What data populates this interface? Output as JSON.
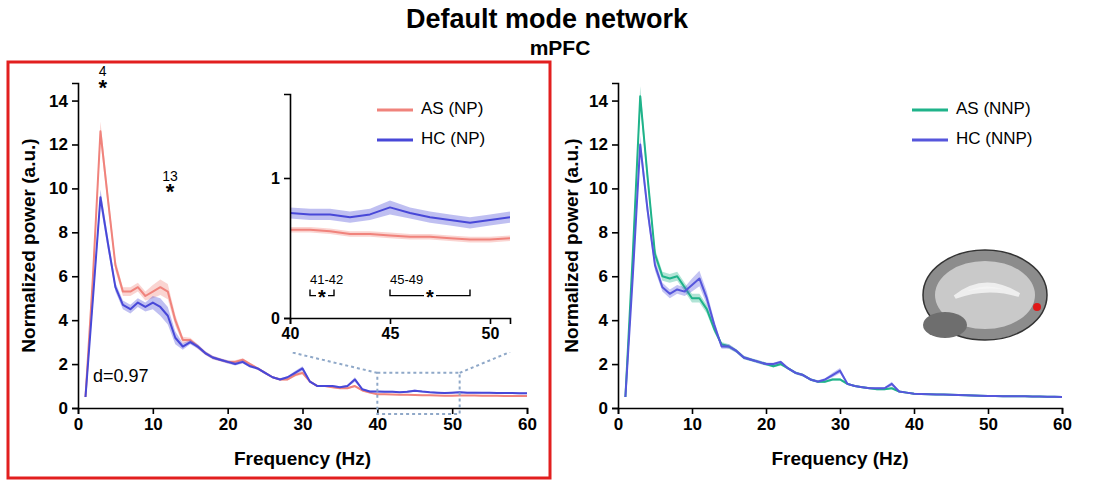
{
  "chart_data": [
    {
      "type": "line",
      "title": "Default mode network",
      "subtitle": "mPFC",
      "x_label": "Frequency (Hz)",
      "y_label": "Normalized power (a.u.)",
      "x": [
        1,
        2,
        3,
        4,
        5,
        6,
        7,
        8,
        9,
        10,
        11,
        12,
        13,
        14,
        15,
        16,
        17,
        18,
        19,
        20,
        21,
        22,
        23,
        24,
        25,
        26,
        27,
        28,
        29,
        30,
        31,
        32,
        33,
        34,
        35,
        36,
        37,
        38,
        39,
        40,
        41,
        42,
        43,
        44,
        45,
        46,
        47,
        48,
        49,
        50,
        51,
        52,
        53,
        54,
        55,
        56,
        57,
        58,
        59,
        60
      ],
      "series": [
        {
          "name": "AS (NP)",
          "color": "#f0837c",
          "values": [
            0.5,
            6,
            12.6,
            9.5,
            6.5,
            5.3,
            5.3,
            5.5,
            5.1,
            5.3,
            5.5,
            5.3,
            4.0,
            3.1,
            3.1,
            2.8,
            2.5,
            2.3,
            2.2,
            2.1,
            2.1,
            2.2,
            2.0,
            1.8,
            1.6,
            1.4,
            1.3,
            1.3,
            1.5,
            1.6,
            1.2,
            1.0,
            1.0,
            0.95,
            0.9,
            0.9,
            1.0,
            0.8,
            0.7,
            0.63,
            0.63,
            0.62,
            0.6,
            0.6,
            0.59,
            0.58,
            0.58,
            0.57,
            0.56,
            0.56,
            0.57,
            0.57,
            0.57,
            0.56,
            0.56,
            0.56,
            0.55,
            0.55,
            0.55,
            0.55
          ],
          "error": [
            0.05,
            0.4,
            0.45,
            0.35,
            0.25,
            0.2,
            0.2,
            0.2,
            0.2,
            0.3,
            0.35,
            0.35,
            0.25,
            0.15,
            0.1,
            0.1,
            0.08,
            0.08,
            0.07,
            0.07,
            0.07,
            0.07,
            0.06,
            0.06,
            0.06,
            0.05,
            0.05,
            0.05,
            0.06,
            0.08,
            0.05,
            0.04,
            0.04,
            0.04,
            0.04,
            0.04,
            0.05,
            0.03,
            0.03,
            0.02,
            0.02,
            0.02,
            0.02,
            0.02,
            0.02,
            0.02,
            0.02,
            0.02,
            0.02,
            0.02,
            0.02,
            0.02,
            0.02,
            0.02,
            0.02,
            0.02,
            0.02,
            0.02,
            0.02,
            0.02
          ]
        },
        {
          "name": "HC (NP)",
          "color": "#4848d8",
          "values": [
            0.5,
            5,
            9.6,
            7.5,
            5.5,
            4.7,
            4.5,
            4.8,
            4.6,
            4.8,
            4.6,
            4.2,
            3.2,
            2.8,
            3.0,
            2.8,
            2.5,
            2.3,
            2.2,
            2.1,
            2.0,
            2.1,
            1.9,
            1.8,
            1.6,
            1.4,
            1.3,
            1.4,
            1.6,
            1.8,
            1.2,
            1.0,
            1.0,
            1.0,
            0.95,
            1.0,
            1.3,
            0.85,
            0.75,
            0.75,
            0.74,
            0.74,
            0.72,
            0.74,
            0.79,
            0.75,
            0.72,
            0.7,
            0.68,
            0.7,
            0.72,
            0.7,
            0.7,
            0.69,
            0.69,
            0.68,
            0.68,
            0.68,
            0.67,
            0.67
          ],
          "error": [
            0.05,
            0.3,
            0.35,
            0.3,
            0.2,
            0.2,
            0.2,
            0.2,
            0.2,
            0.3,
            0.4,
            0.4,
            0.3,
            0.15,
            0.1,
            0.1,
            0.08,
            0.08,
            0.07,
            0.07,
            0.07,
            0.07,
            0.06,
            0.06,
            0.06,
            0.05,
            0.05,
            0.05,
            0.08,
            0.1,
            0.05,
            0.04,
            0.04,
            0.04,
            0.04,
            0.05,
            0.1,
            0.04,
            0.04,
            0.04,
            0.04,
            0.04,
            0.04,
            0.04,
            0.05,
            0.04,
            0.04,
            0.04,
            0.04,
            0.04,
            0.04,
            0.04,
            0.04,
            0.04,
            0.04,
            0.04,
            0.04,
            0.04,
            0.04,
            0.04
          ]
        }
      ],
      "xlim": [
        0,
        60
      ],
      "ylim": [
        0,
        14.8
      ],
      "xticks": [
        0,
        10,
        20,
        30,
        40,
        50,
        60
      ],
      "yticks": [
        0,
        2,
        4,
        6,
        8,
        10,
        12,
        14
      ],
      "legend": "top-right",
      "annotations": [
        {
          "text": "4",
          "x": 3.3,
          "y": 15.3
        },
        {
          "text": "*",
          "x": 3.3,
          "y": 14.5
        },
        {
          "text": "13",
          "x": 12.3,
          "y": 10.5
        },
        {
          "text": "*",
          "x": 12.3,
          "y": 9.8
        },
        {
          "text": "d=0.97",
          "x": 2,
          "y": 1.4
        }
      ]
    },
    {
      "type": "line",
      "x": [
        40,
        41,
        42,
        43,
        44,
        45,
        46,
        47,
        48,
        49,
        50,
        51
      ],
      "series": [
        {
          "color": "#f0837c",
          "values": [
            0.63,
            0.63,
            0.62,
            0.6,
            0.6,
            0.59,
            0.58,
            0.58,
            0.57,
            0.56,
            0.56,
            0.57
          ],
          "error": [
            0.02,
            0.02,
            0.02,
            0.02,
            0.02,
            0.02,
            0.02,
            0.02,
            0.02,
            0.02,
            0.02,
            0.02
          ]
        },
        {
          "color": "#4848d8",
          "values": [
            0.75,
            0.74,
            0.74,
            0.72,
            0.74,
            0.79,
            0.75,
            0.72,
            0.7,
            0.68,
            0.7,
            0.72
          ],
          "error": [
            0.04,
            0.04,
            0.04,
            0.04,
            0.04,
            0.05,
            0.04,
            0.04,
            0.04,
            0.04,
            0.04,
            0.04
          ]
        }
      ],
      "xlim": [
        40,
        51
      ],
      "ylim": [
        0,
        1.6
      ],
      "xticks": [
        40,
        45,
        50
      ],
      "yticks": [
        0,
        1
      ],
      "brackets": [
        {
          "label": "41-42",
          "star": "*",
          "x0": 41,
          "x1": 42.2,
          "y": 0.16
        },
        {
          "label": "45-49",
          "star": "*",
          "x0": 45,
          "x1": 49,
          "y": 0.16
        }
      ]
    },
    {
      "type": "line",
      "x_label": "Frequency (Hz)",
      "y_label": "Normalized power (a.u.)",
      "x": [
        1,
        2,
        3,
        4,
        5,
        6,
        7,
        8,
        9,
        10,
        11,
        12,
        13,
        14,
        15,
        16,
        17,
        18,
        19,
        20,
        21,
        22,
        23,
        24,
        25,
        26,
        27,
        28,
        29,
        30,
        31,
        32,
        33,
        34,
        35,
        36,
        37,
        38,
        39,
        40,
        41,
        42,
        43,
        44,
        45,
        46,
        47,
        48,
        49,
        50,
        51,
        52,
        53,
        54,
        55,
        56,
        57,
        58,
        59,
        60
      ],
      "series": [
        {
          "name": "AS (NNP)",
          "color": "#1fb38a",
          "values": [
            0.5,
            7,
            14.2,
            10.5,
            7,
            6,
            5.9,
            6.0,
            5.5,
            5.0,
            5.0,
            4.5,
            3.6,
            2.9,
            2.8,
            2.6,
            2.3,
            2.2,
            2.1,
            2.0,
            1.9,
            2.0,
            1.8,
            1.6,
            1.5,
            1.3,
            1.2,
            1.2,
            1.3,
            1.3,
            1.1,
            1.0,
            0.95,
            0.9,
            0.85,
            0.85,
            0.9,
            0.75,
            0.7,
            0.65,
            0.64,
            0.63,
            0.62,
            0.61,
            0.6,
            0.59,
            0.58,
            0.57,
            0.56,
            0.55,
            0.55,
            0.54,
            0.54,
            0.53,
            0.53,
            0.52,
            0.52,
            0.51,
            0.51,
            0.5
          ],
          "error": [
            0.05,
            0.4,
            0.45,
            0.35,
            0.25,
            0.2,
            0.2,
            0.2,
            0.2,
            0.2,
            0.2,
            0.2,
            0.15,
            0.1,
            0.1,
            0.08,
            0.08,
            0.07,
            0.07,
            0.07,
            0.06,
            0.06,
            0.06,
            0.06,
            0.06,
            0.06,
            0.06,
            0.06,
            0.06,
            0.06,
            0.05,
            0.04,
            0.04,
            0.04,
            0.04,
            0.04,
            0.04,
            0.04,
            0.04,
            0.04,
            0.03,
            0.03,
            0.03,
            0.03,
            0.03,
            0.03,
            0.03,
            0.03,
            0.03,
            0.03,
            0.03,
            0.03,
            0.03,
            0.03,
            0.03,
            0.03,
            0.03,
            0.03,
            0.03,
            0.03
          ]
        },
        {
          "name": "HC (NNP)",
          "color": "#5656dc",
          "values": [
            0.5,
            6,
            12,
            9,
            6.5,
            5.5,
            5.2,
            5.4,
            5.3,
            5.6,
            5.9,
            5.0,
            3.8,
            2.8,
            2.8,
            2.6,
            2.3,
            2.2,
            2.1,
            2.0,
            2.0,
            2.1,
            1.8,
            1.6,
            1.5,
            1.3,
            1.2,
            1.3,
            1.5,
            1.7,
            1.1,
            1.0,
            0.95,
            0.9,
            0.9,
            0.9,
            1.1,
            0.75,
            0.7,
            0.65,
            0.64,
            0.63,
            0.62,
            0.61,
            0.6,
            0.59,
            0.58,
            0.57,
            0.56,
            0.55,
            0.55,
            0.54,
            0.54,
            0.53,
            0.53,
            0.52,
            0.52,
            0.51,
            0.51,
            0.5
          ],
          "error": [
            0.05,
            0.35,
            0.4,
            0.35,
            0.25,
            0.2,
            0.2,
            0.2,
            0.2,
            0.3,
            0.35,
            0.3,
            0.2,
            0.1,
            0.1,
            0.08,
            0.08,
            0.07,
            0.07,
            0.07,
            0.06,
            0.06,
            0.06,
            0.06,
            0.06,
            0.06,
            0.06,
            0.06,
            0.1,
            0.12,
            0.05,
            0.04,
            0.04,
            0.04,
            0.04,
            0.05,
            0.1,
            0.04,
            0.03,
            0.03,
            0.03,
            0.03,
            0.03,
            0.03,
            0.03,
            0.03,
            0.03,
            0.03,
            0.03,
            0.03,
            0.03,
            0.03,
            0.03,
            0.03,
            0.03,
            0.03,
            0.03,
            0.03,
            0.03,
            0.03
          ]
        }
      ],
      "xlim": [
        0,
        60
      ],
      "ylim": [
        0,
        14.8
      ],
      "xticks": [
        0,
        10,
        20,
        30,
        40,
        50,
        60
      ],
      "yticks": [
        0,
        2,
        4,
        6,
        8,
        10,
        12,
        14
      ],
      "legend": "top-right"
    }
  ]
}
